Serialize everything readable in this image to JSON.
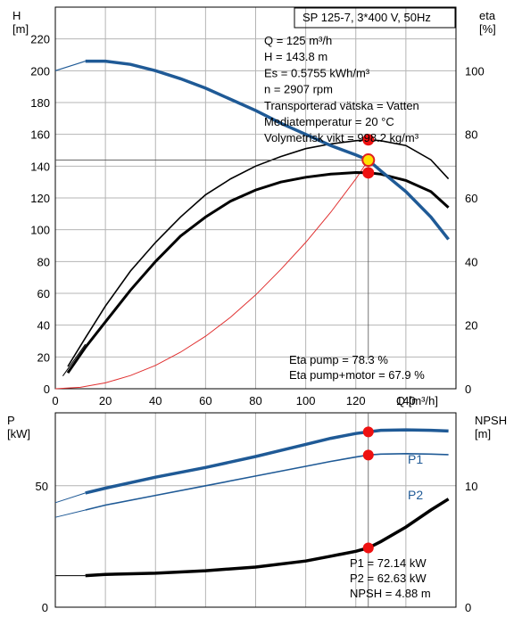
{
  "chart_data": [
    {
      "type": "line",
      "title": "SP 125-7, 3*400 V, 50Hz",
      "ylabel_unit": "H\n[m]",
      "y2label_unit": "eta\n[%]",
      "xlabel": "Q [m³/h]",
      "xlim": [
        0,
        160
      ],
      "ylim": [
        0,
        240
      ],
      "y2lim": [
        0,
        120
      ],
      "x_ticks": [
        0,
        20,
        40,
        60,
        80,
        100,
        120,
        140
      ],
      "y_ticks": [
        0,
        20,
        40,
        60,
        80,
        100,
        120,
        140,
        160,
        180,
        200,
        220
      ],
      "y2_ticks": [
        0,
        20,
        40,
        60,
        80,
        100
      ],
      "grid": true,
      "info_lines": [
        "Q = 125 m³/h",
        "H = 143.8 m",
        "Es = 0.5755 kWh/m³",
        "n = 2907 rpm",
        "Transporterad vätska = Vatten",
        "Mediatemperatur = 20 °C",
        "Volymetrisk vikt = 998.2 kg/m³"
      ],
      "eta_lines": [
        "Eta pump = 78.3 %",
        "Eta pump+motor = 67.9 %"
      ],
      "operating_point": {
        "q": 125,
        "h": 143.8,
        "eta_pump": 78.3,
        "eta_total": 67.9
      },
      "series": [
        {
          "key": "head",
          "color": "#1f5a96",
          "x": [
            0,
            8,
            12,
            20,
            30,
            40,
            50,
            60,
            70,
            80,
            90,
            100,
            110,
            120,
            125,
            130,
            140,
            150,
            157
          ],
          "y": [
            200,
            204,
            206,
            206,
            204,
            200,
            195,
            189,
            182,
            175,
            167,
            160,
            153,
            147,
            143.8,
            137,
            124,
            108,
            94
          ]
        },
        {
          "key": "eta_pump",
          "color": "#000000",
          "x": [
            5,
            12,
            20,
            30,
            40,
            50,
            60,
            70,
            80,
            90,
            100,
            110,
            120,
            125,
            130,
            140,
            150,
            157
          ],
          "y": [
            7,
            16,
            26,
            37,
            46,
            54,
            61,
            66,
            70,
            73,
            75.5,
            77,
            78,
            78.3,
            78,
            76.5,
            72,
            66
          ]
        },
        {
          "key": "eta_total",
          "color": "#000000",
          "x": [
            5,
            12,
            20,
            30,
            40,
            50,
            60,
            70,
            80,
            90,
            100,
            110,
            120,
            125,
            130,
            140,
            150,
            157
          ],
          "y": [
            5,
            13,
            21,
            31,
            40,
            48,
            54,
            59,
            62.5,
            65,
            66.5,
            67.5,
            68,
            67.9,
            67.5,
            65.5,
            62,
            57
          ]
        },
        {
          "key": "system_curve",
          "color": "#e03030",
          "x": [
            0,
            10,
            20,
            30,
            40,
            50,
            60,
            70,
            80,
            90,
            100,
            110,
            120,
            125
          ],
          "y": [
            0,
            0.9,
            3.7,
            8.3,
            14.7,
            23,
            33,
            45,
            59,
            75,
            92,
            111,
            132,
            143.8
          ]
        }
      ]
    },
    {
      "type": "line",
      "ylabel_unit": "P\n[kW]",
      "y2label_unit": "NPSH\n[m]",
      "xlim": [
        0,
        160
      ],
      "ylim": [
        0,
        80
      ],
      "y2lim": [
        0,
        16
      ],
      "y_ticks": [
        0,
        50
      ],
      "y2_ticks": [
        0,
        10
      ],
      "grid": true,
      "info_lines": [
        "P1 = 72.14 kW",
        "P2 = 62.63 kW",
        "NPSH = 4.88 m"
      ],
      "operating_point": {
        "q": 125,
        "p1": 72.14,
        "p2": 62.63,
        "npsh": 4.88
      },
      "series": [
        {
          "key": "p1",
          "name": "P1",
          "color": "#1f5a96",
          "x": [
            0,
            12,
            20,
            40,
            60,
            80,
            100,
            110,
            120,
            125,
            130,
            140,
            150,
            157
          ],
          "y": [
            43,
            47,
            49,
            53.5,
            57.5,
            62,
            67,
            69.5,
            71.5,
            72.14,
            72.8,
            73,
            72.8,
            72.5
          ]
        },
        {
          "key": "p2",
          "name": "P2",
          "color": "#1f5a96",
          "x": [
            0,
            12,
            20,
            40,
            60,
            80,
            100,
            110,
            120,
            125,
            130,
            140,
            150,
            157
          ],
          "y": [
            37,
            40,
            42,
            46,
            50,
            54,
            58,
            60,
            61.8,
            62.63,
            63,
            63.2,
            63,
            62.8
          ]
        },
        {
          "key": "npsh",
          "color": "#000000",
          "x": [
            0,
            12,
            20,
            40,
            60,
            80,
            100,
            110,
            120,
            125,
            130,
            140,
            150,
            157
          ],
          "y": [
            2.6,
            2.6,
            2.7,
            2.8,
            3.0,
            3.3,
            3.8,
            4.2,
            4.6,
            4.88,
            5.4,
            6.6,
            8.0,
            8.9
          ]
        }
      ]
    }
  ]
}
